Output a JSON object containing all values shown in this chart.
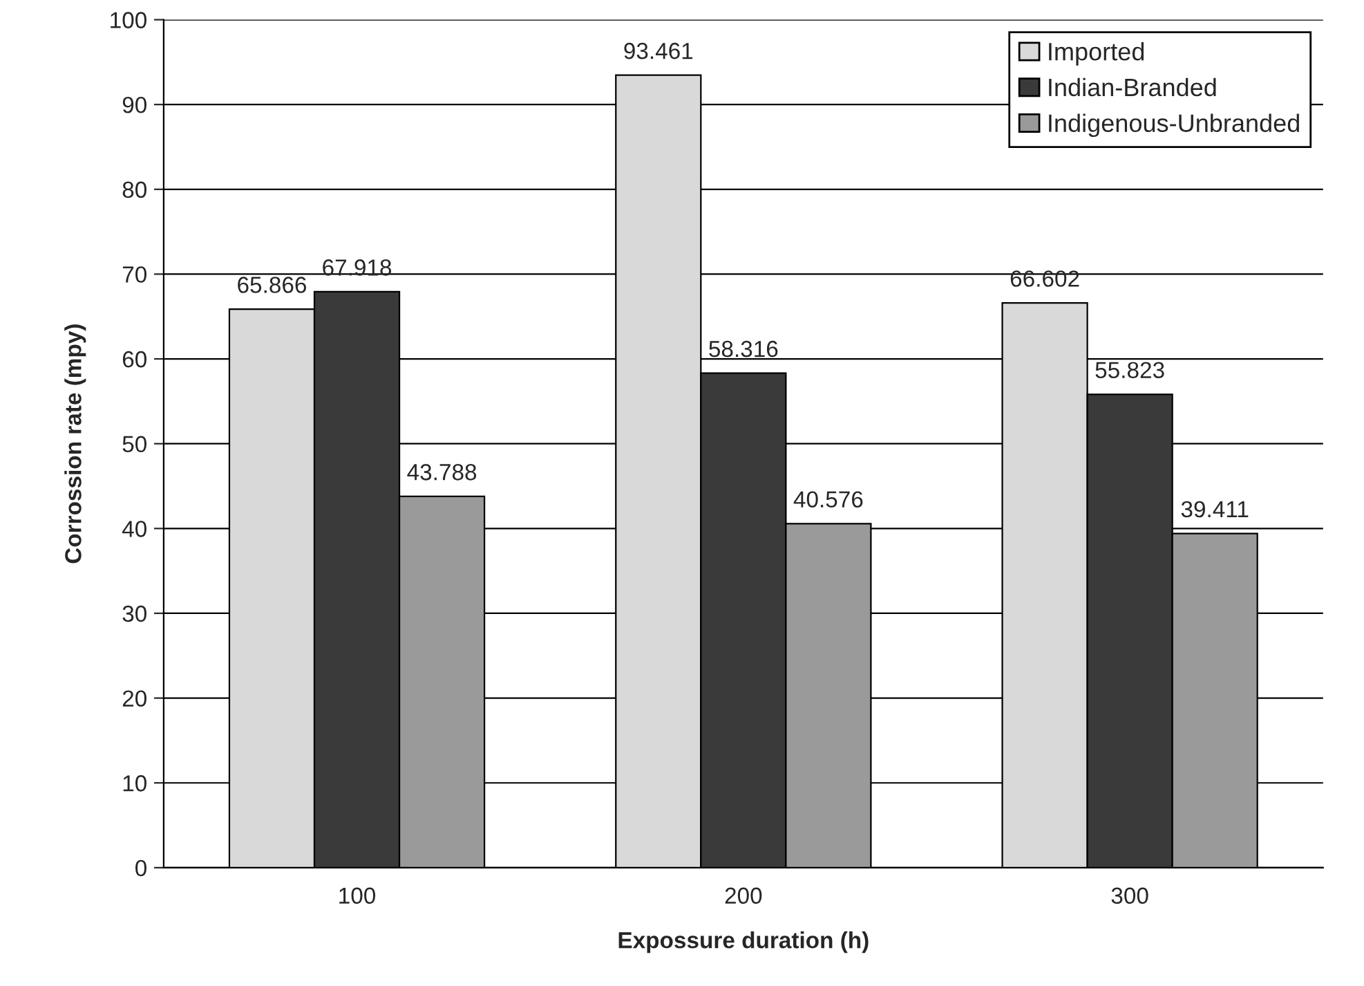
{
  "chart_data": {
    "type": "bar",
    "xlabel": "Expossure duration (h)",
    "ylabel": "Corrossion rate (mpy)",
    "categories": [
      "100",
      "200",
      "300"
    ],
    "series": [
      {
        "name": "Imported",
        "color": "#d9d9d9",
        "values": [
          65.866,
          93.461,
          66.602
        ]
      },
      {
        "name": "Indian-Branded",
        "color": "#3a3a3a",
        "values": [
          67.918,
          58.316,
          55.823
        ]
      },
      {
        "name": "Indigenous-Unbranded",
        "color": "#9a9a9a",
        "values": [
          43.788,
          40.576,
          39.411
        ]
      }
    ],
    "ylim": [
      0,
      100
    ],
    "yticks": [
      0,
      10,
      20,
      30,
      40,
      50,
      60,
      70,
      80,
      90,
      100
    ],
    "grid": "y",
    "legend": "top right",
    "data_labels": true
  }
}
